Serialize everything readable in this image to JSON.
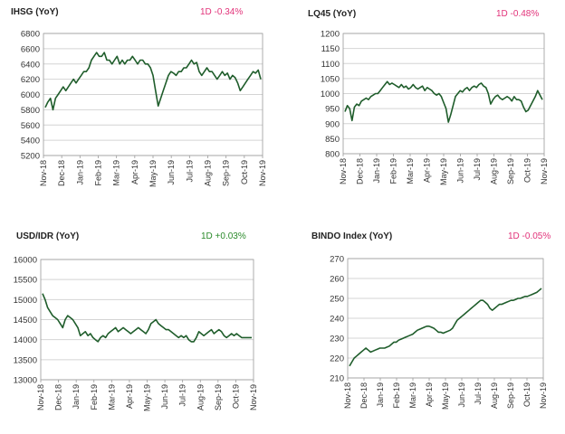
{
  "colors": {
    "line": "#1f5d2b",
    "negative": "#e2337a",
    "positive": "#2a8a2a",
    "grid": "#d4d4d4",
    "axis": "#9a9a9a"
  },
  "chart_data": [
    {
      "type": "line",
      "title": "IHSG (YoY)",
      "change": "1D -0.34%",
      "change_sign": "negative",
      "ylim": [
        5200,
        6800
      ],
      "yticks": [
        "5200",
        "5400",
        "5600",
        "5800",
        "6000",
        "6200",
        "6400",
        "6600",
        "6800"
      ],
      "xticks": [
        "Nov-18",
        "Dec-18",
        "Jan-19",
        "Feb-19",
        "Mar-19",
        "Apr-19",
        "May-19",
        "Jun-19",
        "Jul-19",
        "Aug-19",
        "Sep-19",
        "Oct-19",
        "Nov-19"
      ],
      "grid": true,
      "series": [
        {
          "values": [
            5830,
            5900,
            5950,
            5800,
            5950,
            6000,
            6050,
            6100,
            6050,
            6100,
            6150,
            6200,
            6150,
            6200,
            6250,
            6300,
            6300,
            6350,
            6450,
            6500,
            6550,
            6500,
            6500,
            6550,
            6450,
            6450,
            6400,
            6450,
            6500,
            6400,
            6450,
            6400,
            6450,
            6450,
            6500,
            6450,
            6400,
            6450,
            6450,
            6400,
            6400,
            6350,
            6250,
            6050,
            5850,
            5950,
            6050,
            6150,
            6250,
            6300,
            6280,
            6250,
            6300,
            6300,
            6350,
            6350,
            6400,
            6450,
            6400,
            6420,
            6300,
            6250,
            6300,
            6350,
            6300,
            6300,
            6250,
            6200,
            6250,
            6300,
            6250,
            6280,
            6200,
            6250,
            6220,
            6150,
            6050,
            6100,
            6150,
            6200,
            6250,
            6300,
            6280,
            6320,
            6200
          ]
        }
      ]
    },
    {
      "type": "line",
      "title": "LQ45 (YoY)",
      "change": "1D -0.48%",
      "change_sign": "negative",
      "ylim": [
        800,
        1200
      ],
      "yticks": [
        "800",
        "850",
        "900",
        "950",
        "1000",
        "1050",
        "1100",
        "1150",
        "1200"
      ],
      "xticks": [
        "Nov-18",
        "Dec-18",
        "Jan-19",
        "Feb-19",
        "Mar-19",
        "Apr-19",
        "May-19",
        "Jun-19",
        "Jul-19",
        "Aug-19",
        "Sep-19",
        "Oct-19",
        "Nov-19"
      ],
      "grid": true,
      "series": [
        {
          "values": [
            940,
            960,
            950,
            910,
            955,
            965,
            960,
            975,
            980,
            985,
            980,
            990,
            995,
            1000,
            1000,
            1010,
            1020,
            1030,
            1040,
            1030,
            1035,
            1030,
            1025,
            1020,
            1030,
            1020,
            1025,
            1015,
            1020,
            1030,
            1020,
            1015,
            1020,
            1025,
            1010,
            1020,
            1015,
            1010,
            1000,
            995,
            1000,
            990,
            970,
            950,
            905,
            930,
            960,
            990,
            1000,
            1010,
            1005,
            1015,
            1020,
            1010,
            1020,
            1025,
            1020,
            1030,
            1035,
            1025,
            1020,
            1000,
            965,
            980,
            990,
            995,
            985,
            980,
            985,
            990,
            985,
            975,
            990,
            980,
            980,
            975,
            955,
            940,
            945,
            960,
            975,
            990,
            1010,
            995,
            980
          ]
        }
      ]
    },
    {
      "type": "line",
      "title": "USD/IDR  (YoY)",
      "change": "1D +0.03%",
      "change_sign": "positive",
      "ylim": [
        13000,
        16000
      ],
      "yticks": [
        "13000",
        "13500",
        "14000",
        "14500",
        "15000",
        "15500",
        "16000"
      ],
      "xticks": [
        "Nov-18",
        "Dec-18",
        "Jan-19",
        "Feb-19",
        "Mar-19",
        "Apr-19",
        "May-19",
        "Jun-19",
        "Jul-19",
        "Aug-19",
        "Sep-19",
        "Oct-19",
        "Nov-19"
      ],
      "grid": true,
      "series": [
        {
          "values": [
            15150,
            15000,
            14800,
            14700,
            14600,
            14550,
            14500,
            14400,
            14300,
            14500,
            14600,
            14550,
            14500,
            14400,
            14300,
            14100,
            14150,
            14200,
            14100,
            14150,
            14050,
            14000,
            13950,
            14050,
            14100,
            14050,
            14150,
            14200,
            14250,
            14300,
            14200,
            14250,
            14300,
            14250,
            14200,
            14150,
            14200,
            14250,
            14300,
            14250,
            14200,
            14150,
            14250,
            14400,
            14450,
            14500,
            14400,
            14350,
            14300,
            14250,
            14250,
            14200,
            14150,
            14100,
            14050,
            14100,
            14050,
            14100,
            14000,
            13950,
            13950,
            14050,
            14200,
            14150,
            14100,
            14150,
            14200,
            14250,
            14150,
            14200,
            14250,
            14200,
            14100,
            14050,
            14100,
            14150,
            14100,
            14150,
            14100,
            14050,
            14050,
            14050,
            14050,
            14050
          ]
        }
      ]
    },
    {
      "type": "line",
      "title": "BINDO Index (YoY)",
      "change": "1D -0.05%",
      "change_sign": "negative",
      "ylim": [
        210,
        270
      ],
      "yticks": [
        "210",
        "220",
        "230",
        "240",
        "250",
        "260",
        "270"
      ],
      "xticks": [
        "Nov-18",
        "Dec-18",
        "Jan-19",
        "Feb-19",
        "Mar-19",
        "Apr-19",
        "May-19",
        "Jun-19",
        "Jul-19",
        "Aug-19",
        "Sep-19",
        "Oct-19",
        "Nov-19"
      ],
      "grid": true,
      "series": [
        {
          "values": [
            216,
            218,
            220,
            221,
            222,
            223,
            224,
            225,
            224,
            223,
            223.5,
            224,
            224.5,
            225,
            225,
            225,
            225.5,
            226,
            227,
            228,
            228,
            229,
            229.5,
            230,
            230.5,
            231,
            231.5,
            232,
            233,
            234,
            234.5,
            235,
            235.5,
            236,
            236,
            235.5,
            235,
            234,
            233,
            233,
            232.5,
            233,
            233.5,
            234,
            235,
            237,
            239,
            240,
            241,
            242,
            243,
            244,
            245,
            246,
            247,
            248,
            249,
            249,
            248,
            247,
            245,
            244,
            245,
            246,
            247,
            247,
            247.5,
            248,
            248.5,
            249,
            249,
            249.5,
            250,
            250,
            250.5,
            251,
            251,
            251.5,
            252,
            252.5,
            253,
            254,
            255
          ]
        }
      ]
    }
  ]
}
